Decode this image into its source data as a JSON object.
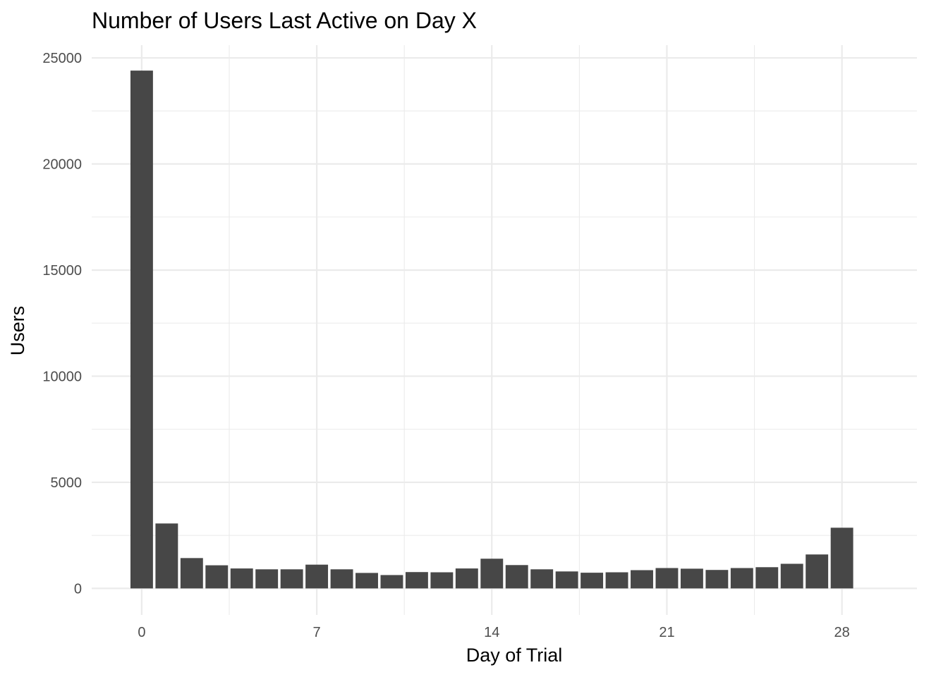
{
  "chart_data": {
    "type": "bar",
    "title": "Number of Users Last Active on Day X",
    "xlabel": "Day of Trial",
    "ylabel": "Users",
    "x": [
      0,
      1,
      2,
      3,
      4,
      5,
      6,
      7,
      8,
      9,
      10,
      11,
      12,
      13,
      14,
      15,
      16,
      17,
      18,
      19,
      20,
      21,
      22,
      23,
      24,
      25,
      26,
      27,
      28
    ],
    "values": [
      24400,
      3060,
      1430,
      1090,
      940,
      900,
      900,
      1120,
      900,
      730,
      630,
      770,
      760,
      940,
      1400,
      1100,
      900,
      800,
      740,
      760,
      860,
      960,
      930,
      870,
      960,
      1000,
      1160,
      1600,
      2860
    ],
    "xlim": [
      -2,
      31
    ],
    "ylim": [
      -1250,
      25600
    ],
    "x_ticks": [
      "0",
      "7",
      "14",
      "21",
      "28"
    ],
    "y_ticks": [
      "0",
      "5000",
      "10000",
      "15000",
      "20000",
      "25000"
    ],
    "bar_color": "#474747",
    "grid": true,
    "legend": "none"
  }
}
